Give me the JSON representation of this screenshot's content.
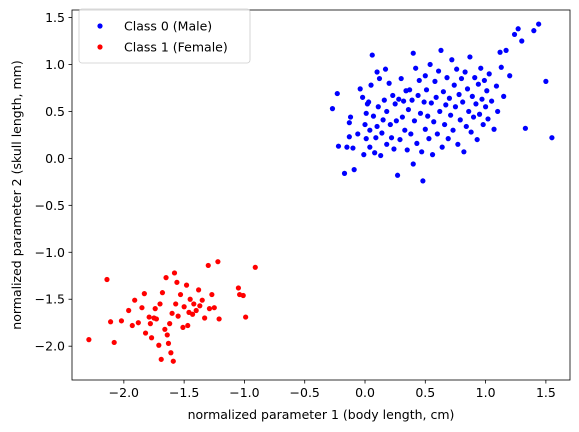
{
  "chart_data": {
    "type": "scatter",
    "xlabel": "normalized parameter 1 (body length, cm)",
    "ylabel": "normalized parameter 2 (skull length, mm)",
    "xlim": [
      -2.43,
      1.7
    ],
    "ylim": [
      -2.36,
      1.58
    ],
    "xticks": [
      -2.0,
      -1.5,
      -1.0,
      -0.5,
      0.0,
      0.5,
      1.0,
      1.5
    ],
    "xtick_labels": [
      "−2.0",
      "−1.5",
      "−1.0",
      "−0.5",
      "0.0",
      "0.5",
      "1.0",
      "1.5"
    ],
    "yticks": [
      -2.0,
      -1.5,
      -1.0,
      -0.5,
      0.0,
      0.5,
      1.0,
      1.5
    ],
    "ytick_labels": [
      "−2.0",
      "−1.5",
      "−1.0",
      "−0.5",
      "0.0",
      "0.5",
      "1.0",
      "1.5"
    ],
    "grid": false,
    "legend_position": "top-left",
    "series": [
      {
        "name": "Class 0 (Male)",
        "color": "#0000ff",
        "points": [
          [
            -0.27,
            0.53
          ],
          [
            -0.23,
            0.69
          ],
          [
            -0.22,
            0.13
          ],
          [
            -0.17,
            -0.16
          ],
          [
            -0.15,
            0.12
          ],
          [
            -0.13,
            0.38
          ],
          [
            -0.13,
            0.23
          ],
          [
            -0.12,
            0.44
          ],
          [
            -0.1,
            0.11
          ],
          [
            -0.09,
            -0.12
          ],
          [
            -0.06,
            0.26
          ],
          [
            -0.04,
            0.74
          ],
          [
            -0.02,
            0.65
          ],
          [
            -0.01,
            0.04
          ],
          [
            0.0,
            0.36
          ],
          [
            0.01,
            0.48
          ],
          [
            0.01,
            0.21
          ],
          [
            0.02,
            0.58
          ],
          [
            0.03,
            0.6
          ],
          [
            0.04,
            0.3
          ],
          [
            0.04,
            0.12
          ],
          [
            0.05,
            0.78
          ],
          [
            0.06,
            1.1
          ],
          [
            0.07,
            0.45
          ],
          [
            0.08,
            0.06
          ],
          [
            0.09,
            0.22
          ],
          [
            0.1,
            0.92
          ],
          [
            0.1,
            0.34
          ],
          [
            0.11,
            0.55
          ],
          [
            0.12,
            0.85
          ],
          [
            0.13,
            0.03
          ],
          [
            0.14,
            0.27
          ],
          [
            0.15,
            0.41
          ],
          [
            0.16,
            0.62
          ],
          [
            0.17,
            0.95
          ],
          [
            0.18,
            0.5
          ],
          [
            0.18,
            0.15
          ],
          [
            0.2,
            0.8
          ],
          [
            0.21,
            0.36
          ],
          [
            0.22,
            0.22
          ],
          [
            0.23,
            0.67
          ],
          [
            0.24,
            0.1
          ],
          [
            0.25,
            0.58
          ],
          [
            0.26,
            0.4
          ],
          [
            0.27,
            -0.18
          ],
          [
            0.28,
            0.63
          ],
          [
            0.29,
            0.2
          ],
          [
            0.3,
            0.85
          ],
          [
            0.31,
            0.44
          ],
          [
            0.32,
            0.61
          ],
          [
            0.33,
            0.3
          ],
          [
            0.34,
            0.72
          ],
          [
            0.35,
            0.09
          ],
          [
            0.36,
            0.52
          ],
          [
            0.37,
            0.73
          ],
          [
            0.38,
            0.26
          ],
          [
            0.39,
            0.62
          ],
          [
            0.4,
            -0.06
          ],
          [
            0.4,
            1.12
          ],
          [
            0.41,
            0.4
          ],
          [
            0.42,
            0.96
          ],
          [
            0.43,
            0.16
          ],
          [
            0.44,
            0.67
          ],
          [
            0.45,
            0.83
          ],
          [
            0.46,
            0.48
          ],
          [
            0.47,
            0.07
          ],
          [
            0.48,
            -0.24
          ],
          [
            0.49,
            0.6
          ],
          [
            0.5,
            0.31
          ],
          [
            0.5,
            0.88
          ],
          [
            0.51,
            0.73
          ],
          [
            0.52,
            0.45
          ],
          [
            0.53,
            0.21
          ],
          [
            0.54,
            1.0
          ],
          [
            0.55,
            0.59
          ],
          [
            0.56,
            0.04
          ],
          [
            0.57,
            0.39
          ],
          [
            0.58,
            0.82
          ],
          [
            0.59,
            0.65
          ],
          [
            0.6,
            0.26
          ],
          [
            0.61,
            0.93
          ],
          [
            0.62,
            0.5
          ],
          [
            0.63,
            1.15
          ],
          [
            0.64,
            0.12
          ],
          [
            0.65,
            0.71
          ],
          [
            0.66,
            0.36
          ],
          [
            0.67,
            0.57
          ],
          [
            0.68,
            0.86
          ],
          [
            0.69,
            0.21
          ],
          [
            0.7,
            0.64
          ],
          [
            0.71,
            0.46
          ],
          [
            0.72,
            1.05
          ],
          [
            0.73,
            0.3
          ],
          [
            0.74,
            0.78
          ],
          [
            0.75,
            0.55
          ],
          [
            0.76,
            0.95
          ],
          [
            0.77,
            0.15
          ],
          [
            0.78,
            0.68
          ],
          [
            0.79,
            0.41
          ],
          [
            0.8,
            0.85
          ],
          [
            0.81,
            0.6
          ],
          [
            0.82,
            0.07
          ],
          [
            0.83,
            0.92
          ],
          [
            0.84,
            0.34
          ],
          [
            0.85,
            0.74
          ],
          [
            0.86,
            0.5
          ],
          [
            0.87,
            1.08
          ],
          [
            0.88,
            0.28
          ],
          [
            0.89,
            0.66
          ],
          [
            0.9,
            0.44
          ],
          [
            0.91,
            0.86
          ],
          [
            0.92,
            0.58
          ],
          [
            0.93,
            0.2
          ],
          [
            0.94,
            0.79
          ],
          [
            0.95,
            0.47
          ],
          [
            0.96,
            0.96
          ],
          [
            0.97,
            0.63
          ],
          [
            0.98,
            0.36
          ],
          [
            0.99,
            0.83
          ],
          [
            1.0,
            0.55
          ],
          [
            1.01,
            0.72
          ],
          [
            1.02,
            0.42
          ],
          [
            1.03,
            0.9
          ],
          [
            1.05,
            0.61
          ],
          [
            1.07,
            0.31
          ],
          [
            1.09,
            0.77
          ],
          [
            1.1,
            0.5
          ],
          [
            1.12,
            1.13
          ],
          [
            1.13,
            0.97
          ],
          [
            1.15,
            0.66
          ],
          [
            1.17,
            1.15
          ],
          [
            1.2,
            0.88
          ],
          [
            1.24,
            1.32
          ],
          [
            1.27,
            1.38
          ],
          [
            1.3,
            1.25
          ],
          [
            1.33,
            0.32
          ],
          [
            1.4,
            1.36
          ],
          [
            1.44,
            1.43
          ],
          [
            1.5,
            0.82
          ],
          [
            1.55,
            0.22
          ]
        ]
      },
      {
        "name": "Class 1 (Female)",
        "color": "#ff0000",
        "points": [
          [
            -2.29,
            -1.93
          ],
          [
            -2.14,
            -1.29
          ],
          [
            -2.11,
            -1.74
          ],
          [
            -2.08,
            -1.96
          ],
          [
            -2.02,
            -1.73
          ],
          [
            -1.96,
            -1.62
          ],
          [
            -1.93,
            -1.78
          ],
          [
            -1.91,
            -1.51
          ],
          [
            -1.88,
            -1.75
          ],
          [
            -1.85,
            -1.59
          ],
          [
            -1.83,
            -1.44
          ],
          [
            -1.82,
            -1.86
          ],
          [
            -1.79,
            -1.69
          ],
          [
            -1.78,
            -1.76
          ],
          [
            -1.77,
            -1.91
          ],
          [
            -1.75,
            -1.7
          ],
          [
            -1.74,
            -1.6
          ],
          [
            -1.73,
            -1.71
          ],
          [
            -1.71,
            -1.99
          ],
          [
            -1.7,
            -1.55
          ],
          [
            -1.69,
            -2.14
          ],
          [
            -1.68,
            -1.43
          ],
          [
            -1.66,
            -1.82
          ],
          [
            -1.65,
            -1.27
          ],
          [
            -1.64,
            -1.88
          ],
          [
            -1.63,
            -1.97
          ],
          [
            -1.62,
            -1.76
          ],
          [
            -1.61,
            -2.07
          ],
          [
            -1.6,
            -1.65
          ],
          [
            -1.59,
            -2.16
          ],
          [
            -1.58,
            -1.22
          ],
          [
            -1.57,
            -1.55
          ],
          [
            -1.56,
            -1.32
          ],
          [
            -1.55,
            -1.68
          ],
          [
            -1.53,
            -1.45
          ],
          [
            -1.51,
            -1.8
          ],
          [
            -1.5,
            -1.58
          ],
          [
            -1.48,
            -1.35
          ],
          [
            -1.47,
            -1.78
          ],
          [
            -1.46,
            -1.64
          ],
          [
            -1.45,
            -1.5
          ],
          [
            -1.43,
            -1.66
          ],
          [
            -1.42,
            -1.55
          ],
          [
            -1.4,
            -1.62
          ],
          [
            -1.38,
            -1.4
          ],
          [
            -1.37,
            -1.57
          ],
          [
            -1.35,
            -1.51
          ],
          [
            -1.33,
            -1.7
          ],
          [
            -1.3,
            -1.14
          ],
          [
            -1.29,
            -1.6
          ],
          [
            -1.27,
            -1.45
          ],
          [
            -1.25,
            -1.59
          ],
          [
            -1.22,
            -1.1
          ],
          [
            -1.21,
            -1.71
          ],
          [
            -1.05,
            -1.38
          ],
          [
            -1.04,
            -1.45
          ],
          [
            -1.01,
            -1.46
          ],
          [
            -0.99,
            -1.69
          ],
          [
            -0.91,
            -1.16
          ]
        ]
      }
    ]
  }
}
